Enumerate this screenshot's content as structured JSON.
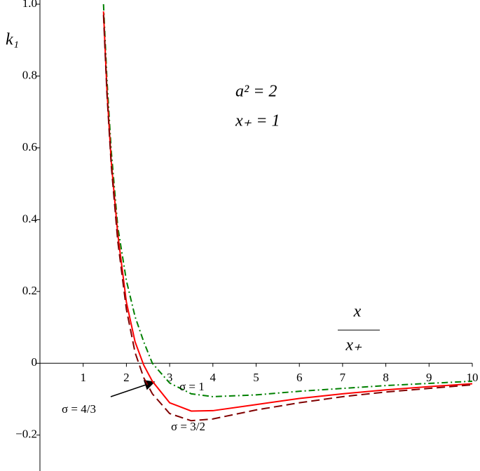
{
  "chart_data": {
    "type": "line",
    "y_label": "k₁",
    "x_label": {
      "numerator": "x",
      "denominator": "x₊"
    },
    "annotations": [
      "a² = 2",
      "x₊ = 1"
    ],
    "x": [
      1.47,
      1.55,
      1.65,
      1.8,
      2.0,
      2.2,
      2.4,
      2.6,
      3.0,
      3.5,
      4,
      5,
      6,
      7,
      8,
      9,
      10
    ],
    "series": [
      {
        "name": "σ = 1",
        "color": "#008000",
        "dash": "dashdot",
        "values": [
          1.0,
          0.79,
          0.59,
          0.38,
          0.23,
          0.13,
          0.06,
          0.0,
          -0.055,
          -0.085,
          -0.093,
          -0.088,
          -0.078,
          -0.07,
          -0.062,
          -0.056,
          -0.05
        ]
      },
      {
        "name": "σ = 4/3",
        "color": "#ff0000",
        "dash": "solid",
        "values": [
          0.98,
          0.76,
          0.56,
          0.36,
          0.17,
          0.06,
          -0.005,
          -0.05,
          -0.11,
          -0.133,
          -0.132,
          -0.115,
          -0.098,
          -0.085,
          -0.074,
          -0.065,
          -0.057
        ]
      },
      {
        "name": "σ = 3/2",
        "color": "#800000",
        "dash": "dash",
        "values": [
          0.97,
          0.75,
          0.55,
          0.34,
          0.15,
          0.03,
          -0.04,
          -0.085,
          -0.14,
          -0.16,
          -0.155,
          -0.13,
          -0.11,
          -0.093,
          -0.08,
          -0.07,
          -0.06
        ]
      }
    ],
    "xlim": [
      0,
      10
    ],
    "ylim": [
      -0.3,
      1.0
    ],
    "xticks": [
      1,
      2,
      3,
      4,
      5,
      6,
      7,
      8,
      9,
      10
    ],
    "yticks": [
      {
        "value": -0.2,
        "label": "−0.2"
      },
      0,
      0.2,
      0.4,
      0.6,
      0.8,
      {
        "value": 1,
        "label": "1.0"
      }
    ]
  }
}
